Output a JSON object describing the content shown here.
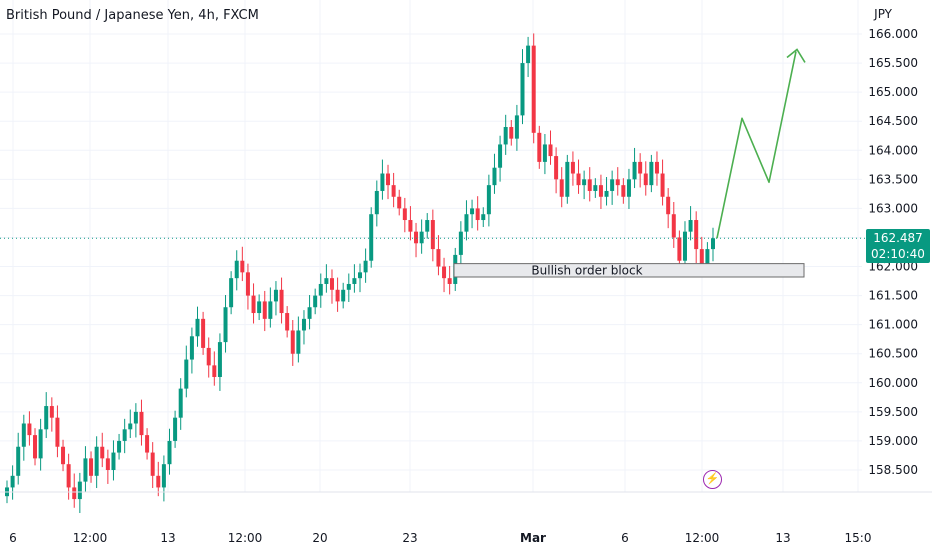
{
  "header": {
    "title": "British Pound / Japanese Yen, 4h, FXCM",
    "currency": "JPY"
  },
  "price_tag": {
    "price": "162.487",
    "countdown": "02:10:40"
  },
  "colors": {
    "up": "#089981",
    "down": "#f23645",
    "projection": "#4caf50",
    "grid": "#f0f3fa",
    "text": "#131722",
    "zone_fill": "#e8e9ec",
    "zone_border": "#6b6b6b",
    "event_icon": "#9c27b0"
  },
  "icons": {
    "event": "lightning-icon"
  },
  "chart_data": {
    "type": "candlestick",
    "title": "British Pound / Japanese Yen, 4h, FXCM",
    "y_unit": "JPY",
    "ylim": [
      157.7,
      166.3
    ],
    "y_ticks": [
      "158.500",
      "159.000",
      "159.500",
      "160.000",
      "160.500",
      "161.000",
      "161.500",
      "162.000",
      "162.500",
      "163.000",
      "163.500",
      "164.000",
      "164.500",
      "165.000",
      "165.500",
      "166.000"
    ],
    "x_ticks": [
      "6",
      "12:00",
      "13",
      "12:00",
      "20",
      "23",
      "Mar",
      "6",
      "12:00",
      "13",
      "15:0"
    ],
    "grid": true,
    "last_price": 162.487,
    "last_price_line": "dotted",
    "candles_note": "approximate OHLC closes traced from the chart",
    "closes": [
      158.2,
      158.4,
      158.9,
      159.3,
      159.1,
      158.7,
      159.2,
      159.6,
      159.4,
      158.9,
      158.6,
      158.2,
      158.0,
      158.3,
      158.7,
      158.4,
      158.9,
      158.7,
      158.5,
      158.8,
      159.0,
      159.2,
      159.3,
      159.5,
      159.1,
      158.8,
      158.4,
      158.2,
      158.6,
      159.0,
      159.4,
      159.9,
      160.4,
      160.8,
      161.1,
      160.6,
      160.3,
      160.1,
      160.7,
      161.3,
      161.8,
      162.1,
      161.9,
      161.5,
      161.2,
      161.4,
      161.1,
      161.4,
      161.6,
      161.2,
      160.9,
      160.5,
      160.9,
      161.1,
      161.3,
      161.5,
      161.7,
      161.8,
      161.6,
      161.4,
      161.6,
      161.7,
      161.8,
      161.9,
      162.1,
      162.9,
      163.3,
      163.6,
      163.4,
      163.2,
      163.0,
      162.8,
      162.6,
      162.4,
      162.6,
      162.8,
      162.3,
      162.0,
      161.8,
      161.7,
      162.2,
      162.6,
      162.9,
      163.0,
      162.8,
      162.9,
      163.4,
      163.7,
      164.1,
      164.4,
      164.2,
      164.6,
      165.5,
      165.8,
      164.3,
      163.8,
      164.1,
      163.9,
      163.5,
      163.2,
      163.8,
      163.6,
      163.4,
      163.5,
      163.3,
      163.4,
      163.2,
      163.3,
      163.5,
      163.4,
      163.2,
      163.5,
      163.8,
      163.6,
      163.4,
      163.8,
      163.6,
      163.2,
      162.9,
      162.5,
      162.1,
      162.6,
      162.8,
      162.3,
      162.0,
      162.3,
      162.487
    ],
    "projection_path": [
      [
        162.487
      ],
      [
        164.55
      ],
      [
        163.45
      ],
      [
        165.7
      ]
    ],
    "annotations": [
      {
        "type": "zone",
        "label": "Bullish order block",
        "y_from": 161.82,
        "y_to": 162.05
      },
      {
        "type": "arrow",
        "label": "",
        "direction": "up"
      }
    ]
  }
}
